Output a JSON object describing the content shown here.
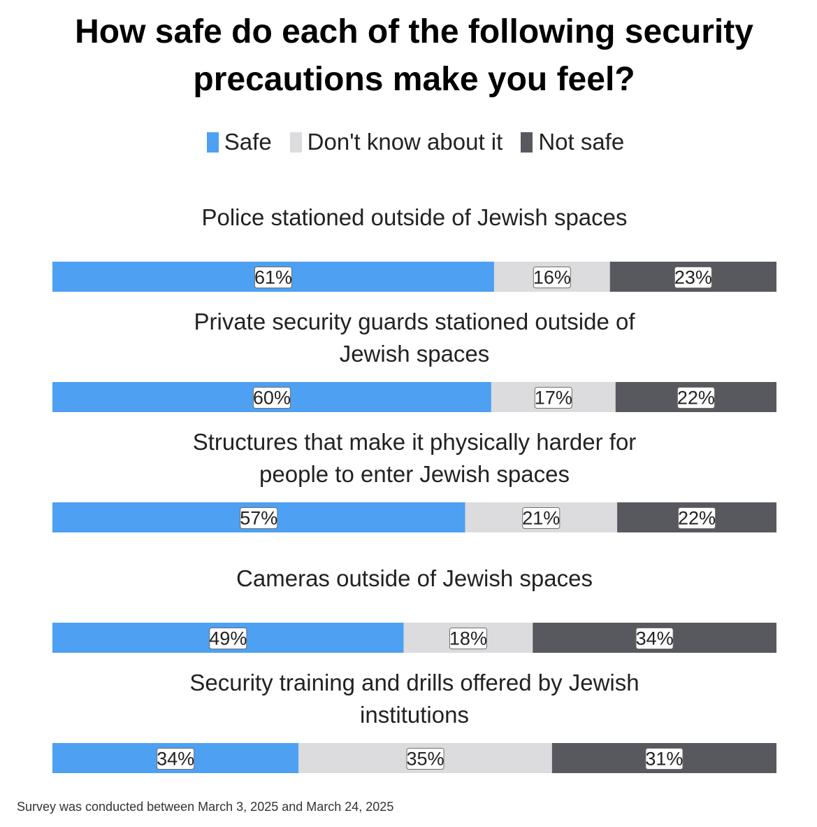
{
  "chart_data": {
    "type": "bar",
    "orientation": "horizontal-stacked-100",
    "title_lines": [
      "How safe do each of the following security",
      "precautions make you feel?"
    ],
    "legend": [
      {
        "name": "Safe",
        "color": "#4da0f2"
      },
      {
        "name": "Don't know about it",
        "color": "#dcdcde"
      },
      {
        "name": "Not safe",
        "color": "#58595e"
      }
    ],
    "categories": [
      {
        "label_lines": [
          "Police stationed outside of Jewish spaces"
        ]
      },
      {
        "label_lines": [
          "Private security guards stationed outside of",
          "Jewish spaces"
        ]
      },
      {
        "label_lines": [
          "Structures that make it physically harder for",
          "people to enter Jewish spaces"
        ]
      },
      {
        "label_lines": [
          "Cameras outside of Jewish spaces"
        ]
      },
      {
        "label_lines": [
          "Security training and drills offered by Jewish",
          "institutions"
        ]
      }
    ],
    "series": [
      {
        "name": "Safe",
        "values": [
          61,
          60,
          57,
          49,
          34
        ],
        "labels": [
          "61%",
          "60%",
          "57%",
          "49%",
          "34%"
        ]
      },
      {
        "name": "Don't know about it",
        "values": [
          16,
          17,
          21,
          18,
          35
        ],
        "labels": [
          "16%",
          "17%",
          "21%",
          "18%",
          "35%"
        ]
      },
      {
        "name": "Not safe",
        "values": [
          23,
          22,
          22,
          34,
          31
        ],
        "labels": [
          "23%",
          "22%",
          "22%",
          "34%",
          "31%"
        ]
      }
    ],
    "xlim": [
      0,
      100
    ],
    "legend_position": "top-center"
  },
  "footnote": "Survey was conducted between March 3, 2025 and March 24, 2025"
}
